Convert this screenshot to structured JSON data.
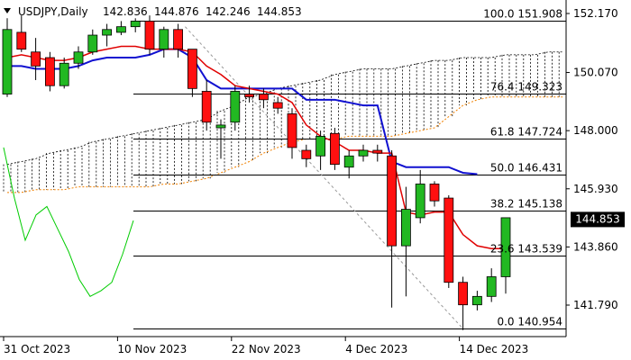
{
  "header": {
    "symbol": "USDJPY,Daily",
    "open": "142.836",
    "high": "144.876",
    "low": "142.246",
    "close": "144.853"
  },
  "chart_data": {
    "type": "candlestick",
    "price_axis": {
      "ticks": [
        "152.170",
        "150.070",
        "148.000",
        "145.930",
        "143.860",
        "141.790"
      ],
      "current_price": "144.853"
    },
    "date_axis": {
      "ticks": [
        {
          "label": "31 Oct 2023",
          "index": 0
        },
        {
          "label": "10 Nov 2023",
          "index": 8
        },
        {
          "label": "22 Nov 2023",
          "index": 16
        },
        {
          "label": "4 Dec 2023",
          "index": 24
        },
        {
          "label": "14 Dec 2023",
          "index": 32
        }
      ]
    },
    "fibonacci": [
      {
        "level": "100.0",
        "price": "151.908"
      },
      {
        "level": "76.4",
        "price": "149.323"
      },
      {
        "level": "61.8",
        "price": "147.724"
      },
      {
        "level": "50.0",
        "price": "146.431"
      },
      {
        "level": "38.2",
        "price": "145.138"
      },
      {
        "level": "23.6",
        "price": "143.539"
      },
      {
        "level": "0.0",
        "price": "140.954"
      }
    ],
    "candles": [
      {
        "o": 149.3,
        "h": 152.0,
        "l": 149.2,
        "c": 151.6
      },
      {
        "o": 151.5,
        "h": 152.1,
        "l": 150.8,
        "c": 150.9
      },
      {
        "o": 150.8,
        "h": 151.3,
        "l": 149.8,
        "c": 150.3
      },
      {
        "o": 150.6,
        "h": 150.8,
        "l": 149.4,
        "c": 149.6
      },
      {
        "o": 149.6,
        "h": 150.6,
        "l": 149.5,
        "c": 150.4
      },
      {
        "o": 150.4,
        "h": 151.0,
        "l": 150.2,
        "c": 150.8
      },
      {
        "o": 150.8,
        "h": 151.6,
        "l": 150.7,
        "c": 151.4
      },
      {
        "o": 151.4,
        "h": 151.8,
        "l": 151.0,
        "c": 151.6
      },
      {
        "o": 151.5,
        "h": 151.9,
        "l": 151.4,
        "c": 151.7
      },
      {
        "o": 151.7,
        "h": 152.0,
        "l": 151.5,
        "c": 151.9
      },
      {
        "o": 151.9,
        "h": 152.1,
        "l": 150.7,
        "c": 150.9
      },
      {
        "o": 150.9,
        "h": 151.7,
        "l": 150.6,
        "c": 151.6
      },
      {
        "o": 151.6,
        "h": 151.8,
        "l": 150.6,
        "c": 150.9
      },
      {
        "o": 150.9,
        "h": 150.9,
        "l": 149.2,
        "c": 149.5
      },
      {
        "o": 149.4,
        "h": 149.8,
        "l": 148.0,
        "c": 148.3
      },
      {
        "o": 148.1,
        "h": 148.4,
        "l": 147.0,
        "c": 148.2
      },
      {
        "o": 148.3,
        "h": 149.6,
        "l": 148.0,
        "c": 149.4
      },
      {
        "o": 149.3,
        "h": 149.6,
        "l": 149.0,
        "c": 149.2
      },
      {
        "o": 149.3,
        "h": 149.5,
        "l": 148.8,
        "c": 149.1
      },
      {
        "o": 149.0,
        "h": 149.2,
        "l": 148.6,
        "c": 148.8
      },
      {
        "o": 148.6,
        "h": 148.8,
        "l": 147.0,
        "c": 147.4
      },
      {
        "o": 147.3,
        "h": 147.5,
        "l": 146.7,
        "c": 147.0
      },
      {
        "o": 147.1,
        "h": 148.0,
        "l": 146.6,
        "c": 147.8
      },
      {
        "o": 147.9,
        "h": 148.1,
        "l": 146.6,
        "c": 146.8
      },
      {
        "o": 146.7,
        "h": 147.3,
        "l": 146.3,
        "c": 147.1
      },
      {
        "o": 147.1,
        "h": 147.5,
        "l": 146.9,
        "c": 147.3
      },
      {
        "o": 147.3,
        "h": 147.5,
        "l": 146.9,
        "c": 147.2
      },
      {
        "o": 147.1,
        "h": 147.3,
        "l": 141.7,
        "c": 143.9
      },
      {
        "o": 143.9,
        "h": 146.0,
        "l": 142.1,
        "c": 145.2
      },
      {
        "o": 144.9,
        "h": 146.6,
        "l": 144.7,
        "c": 146.1
      },
      {
        "o": 146.1,
        "h": 146.2,
        "l": 145.3,
        "c": 145.5
      },
      {
        "o": 145.6,
        "h": 145.7,
        "l": 142.4,
        "c": 142.6
      },
      {
        "o": 142.6,
        "h": 142.8,
        "l": 140.9,
        "c": 141.8
      },
      {
        "o": 141.8,
        "h": 142.3,
        "l": 141.6,
        "c": 142.1
      },
      {
        "o": 142.1,
        "h": 143.1,
        "l": 141.9,
        "c": 142.8
      },
      {
        "o": 142.8,
        "h": 144.9,
        "l": 142.2,
        "c": 144.9
      }
    ],
    "series": [
      {
        "role": "tenkan",
        "color": "#e00000",
        "values": [
          150.6,
          150.7,
          150.6,
          150.5,
          150.5,
          150.6,
          150.8,
          150.9,
          151.0,
          151.0,
          150.9,
          150.9,
          150.9,
          150.8,
          150.3,
          150.0,
          149.6,
          149.5,
          149.4,
          149.3,
          149.0,
          148.2,
          147.8,
          147.6,
          147.3,
          147.3,
          147.2,
          147.2,
          145.1,
          145.0,
          145.1,
          145.1,
          144.3,
          143.9,
          143.8,
          143.8
        ]
      },
      {
        "role": "kijun",
        "color": "#1010d0",
        "values": [
          150.3,
          150.3,
          150.2,
          150.2,
          150.2,
          150.3,
          150.5,
          150.6,
          150.6,
          150.6,
          150.7,
          150.9,
          150.9,
          150.6,
          149.8,
          149.5,
          149.5,
          149.5,
          149.5,
          149.5,
          149.5,
          149.1,
          149.1,
          149.1,
          149.0,
          148.9,
          148.9,
          146.9,
          146.7,
          146.7,
          146.7,
          146.7,
          146.5,
          146.45
        ]
      },
      {
        "role": "chikou",
        "color": "#00cc00",
        "values": [
          147.4,
          145.6,
          144.1,
          145.0,
          145.3,
          144.5,
          143.7,
          142.7,
          142.1,
          142.3,
          142.6,
          143.6,
          144.8
        ]
      },
      {
        "role": "span_a",
        "color": "#000000",
        "values": [
          146.8,
          146.9,
          147.0,
          147.2,
          147.3,
          147.4,
          147.6,
          147.7,
          147.8,
          147.9,
          148.0,
          148.1,
          148.2,
          148.3,
          148.4,
          148.7,
          148.9,
          149.2,
          149.3,
          149.5,
          149.6,
          149.7,
          149.8,
          150.0,
          150.1,
          150.2,
          150.2,
          150.2,
          150.3,
          150.4,
          150.5,
          150.5,
          150.6,
          150.6,
          150.6,
          150.7,
          150.7,
          150.7,
          150.8,
          150.8
        ]
      },
      {
        "role": "span_b",
        "color": "#f08000",
        "values": [
          145.8,
          145.8,
          145.9,
          145.9,
          145.9,
          146.0,
          146.0,
          146.0,
          146.0,
          146.0,
          146.0,
          146.1,
          146.1,
          146.2,
          146.3,
          146.5,
          146.7,
          146.9,
          147.2,
          147.4,
          147.6,
          147.7,
          147.7,
          147.7,
          147.8,
          147.8,
          147.8,
          147.8,
          147.9,
          148.0,
          148.1,
          148.5,
          148.9,
          149.1,
          149.2,
          149.2,
          149.2,
          149.2,
          149.2,
          149.2
        ]
      }
    ]
  }
}
